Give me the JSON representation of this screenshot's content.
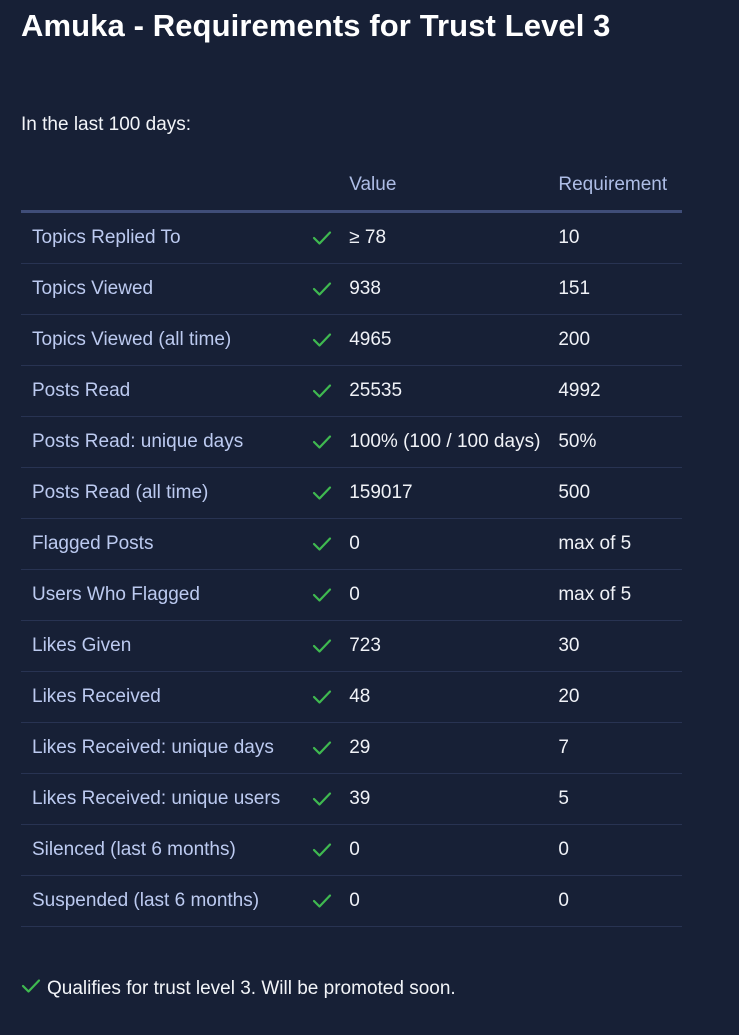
{
  "page_title": "Amuka - Requirements for Trust Level 3",
  "intro": "In the last 100 days:",
  "columns": {
    "value": "Value",
    "requirement": "Requirement"
  },
  "rows": [
    {
      "label": "Topics Replied To",
      "value": "≥ 78",
      "requirement": "10",
      "status": "met"
    },
    {
      "label": "Topics Viewed",
      "value": "938",
      "requirement": "151",
      "status": "met"
    },
    {
      "label": "Topics Viewed (all time)",
      "value": "4965",
      "requirement": "200",
      "status": "met"
    },
    {
      "label": "Posts Read",
      "value": "25535",
      "requirement": "4992",
      "status": "met"
    },
    {
      "label": "Posts Read: unique days",
      "value": "100% (100 / 100 days)",
      "requirement": "50%",
      "status": "met"
    },
    {
      "label": "Posts Read (all time)",
      "value": "159017",
      "requirement": "500",
      "status": "met"
    },
    {
      "label": "Flagged Posts",
      "value": "0",
      "requirement": "max of 5",
      "status": "met"
    },
    {
      "label": "Users Who Flagged",
      "value": "0",
      "requirement": "max of 5",
      "status": "met"
    },
    {
      "label": "Likes Given",
      "value": "723",
      "requirement": "30",
      "status": "met"
    },
    {
      "label": "Likes Received",
      "value": "48",
      "requirement": "20",
      "status": "met"
    },
    {
      "label": "Likes Received: unique days",
      "value": "29",
      "requirement": "7",
      "status": "met"
    },
    {
      "label": "Likes Received: unique users",
      "value": "39",
      "requirement": "5",
      "status": "met"
    },
    {
      "label": "Silenced (last 6 months)",
      "value": "0",
      "requirement": "0",
      "status": "met"
    },
    {
      "label": "Suspended (last 6 months)",
      "value": "0",
      "requirement": "0",
      "status": "met"
    }
  ],
  "footer": {
    "message": "Qualifies for trust level 3. Will be promoted soon.",
    "icon": "check-icon"
  },
  "colors": {
    "background": "#172036",
    "check": "#3fb950",
    "label": "#bccaf0",
    "header": "#aebde6"
  }
}
